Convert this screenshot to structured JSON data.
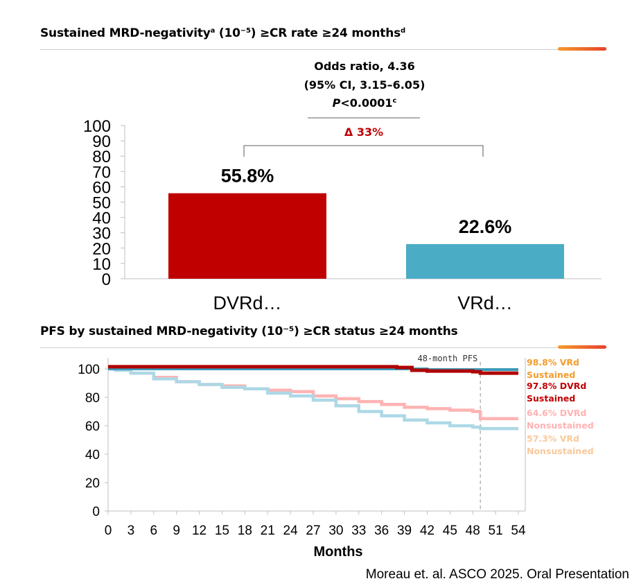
{
  "top_title": {
    "main": "Sustained MRD-negativity",
    "sup_a": "a",
    "rest": " (10",
    "exp": "−5",
    "rest2": ") ≥CR rate ≥24 months",
    "sup_d": "d"
  },
  "stats": {
    "odds_ratio": "Odds ratio, 4.36",
    "ci": "(95% CI, 3.15–6.05)",
    "p_italic": "P",
    "p_value": "<0.0001",
    "p_sup": "c",
    "delta": "Δ 33%"
  },
  "bottom_title": "PFS by sustained MRD-negativity (10⁻⁵) ≥CR status ≥24 months",
  "source": "Moreau et. al. ASCO 2025. Oral Presentation",
  "colors": {
    "dvrd": "#c00000",
    "vrd": "#4bacc6",
    "vrd_sustained": "#3a9bb8",
    "dvrd_sustained": "#b00000",
    "dvrd_nonsustained": "#ffb3b3",
    "vrd_nonsustained": "#add8e6",
    "label_vrd_sustained": "#f39c2c",
    "label_dvrd_sustained": "#c00000",
    "label_dvrd_nonsustained": "#ffb3b3",
    "label_vrd_nonsustained": "#f9c99a"
  },
  "chart_data": [
    {
      "type": "bar",
      "title": "Sustained MRD-negativity (10−5) ≥CR rate ≥24 months",
      "categories": [
        "DVRd…",
        "VRd…"
      ],
      "values": [
        55.8,
        22.6
      ],
      "data_labels": [
        "55.8%",
        "22.6%"
      ],
      "ylim": [
        0,
        100
      ],
      "yticks": [
        0,
        10,
        20,
        30,
        40,
        50,
        60,
        70,
        80,
        90,
        100
      ],
      "annotation": "Δ 33%"
    },
    {
      "type": "line",
      "title": "PFS by sustained MRD-negativity (10⁻⁵) ≥CR status ≥24 months",
      "xlabel": "Months",
      "ylabel": "",
      "xlim": [
        0,
        54
      ],
      "ylim": [
        0,
        100
      ],
      "xticks": [
        0,
        3,
        6,
        9,
        12,
        15,
        18,
        21,
        24,
        27,
        30,
        33,
        36,
        39,
        42,
        45,
        48,
        51,
        54
      ],
      "yticks": [
        0,
        20,
        40,
        60,
        80,
        100
      ],
      "reference_line": {
        "x": 49,
        "label": "48-month PFS"
      },
      "series": [
        {
          "name": "DVRd Nonsustained",
          "label": [
            "64.6%  DVRd",
            "Nonsustained"
          ],
          "x": [
            0,
            1,
            3,
            6,
            9,
            12,
            15,
            18,
            21,
            24,
            27,
            30,
            33,
            36,
            39,
            42,
            45,
            48,
            49,
            54
          ],
          "y": [
            100,
            99.5,
            97,
            94,
            91,
            89,
            88,
            86,
            85,
            84,
            81,
            79,
            77,
            75,
            73,
            72,
            71,
            70,
            65,
            65
          ]
        },
        {
          "name": "VRd Nonsustained",
          "label": [
            "57.3% VRd",
            "Nonsustained"
          ],
          "x": [
            0,
            1,
            3,
            6,
            9,
            12,
            15,
            18,
            21,
            24,
            27,
            30,
            33,
            36,
            39,
            42,
            45,
            48,
            49,
            54
          ],
          "y": [
            100,
            99,
            97,
            93,
            91,
            89,
            87,
            86,
            83,
            81,
            78,
            74,
            70,
            67,
            64,
            62,
            60,
            59,
            58,
            58
          ]
        },
        {
          "name": "VRd Sustained",
          "label": [
            "98.8%  VRd",
            "Sustained"
          ],
          "x": [
            0,
            18,
            24,
            30,
            36,
            42,
            48,
            54
          ],
          "y": [
            100,
            100,
            100,
            100,
            100,
            99.5,
            99.5,
            99.5
          ]
        },
        {
          "name": "DVRd Sustained",
          "label": [
            "97.8% DVRd",
            "Sustained"
          ],
          "x": [
            0,
            18,
            24,
            30,
            36,
            38,
            40,
            42,
            45,
            48,
            49,
            54
          ],
          "y": [
            101.5,
            101.5,
            101.5,
            101.5,
            101.5,
            101,
            99,
            98.5,
            98.5,
            98,
            97,
            97
          ]
        }
      ]
    }
  ]
}
